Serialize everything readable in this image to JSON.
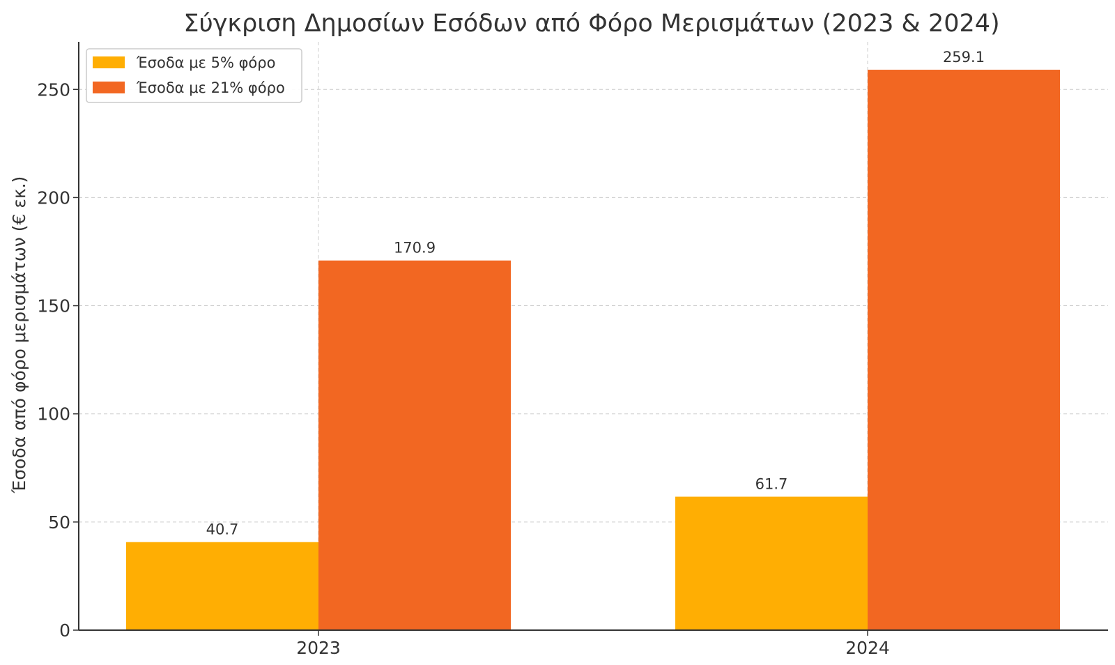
{
  "chart_data": {
    "type": "bar",
    "title": "Σύγκριση Δημοσίων Εσόδων από Φόρο Μερισμάτων (2023 & 2024)",
    "xlabel": "",
    "ylabel": "Έσοδα από φόρο μερισμάτων (€ εκ.)",
    "categories": [
      "2023",
      "2024"
    ],
    "series": [
      {
        "name": "Έσοδα με 5% φόρο",
        "values": [
          40.7,
          61.7
        ],
        "color": "#FFAE03"
      },
      {
        "name": "Έσοδα με 21% φόρο",
        "values": [
          170.9,
          259.1
        ],
        "color": "#F26722"
      }
    ],
    "data_labels": [
      [
        "40.7",
        "61.7"
      ],
      [
        "170.9",
        "259.1"
      ]
    ],
    "ylim": [
      0,
      272
    ],
    "yticks": [
      0,
      50,
      100,
      150,
      200,
      250
    ],
    "grid": true,
    "legend_position": "top-left"
  }
}
